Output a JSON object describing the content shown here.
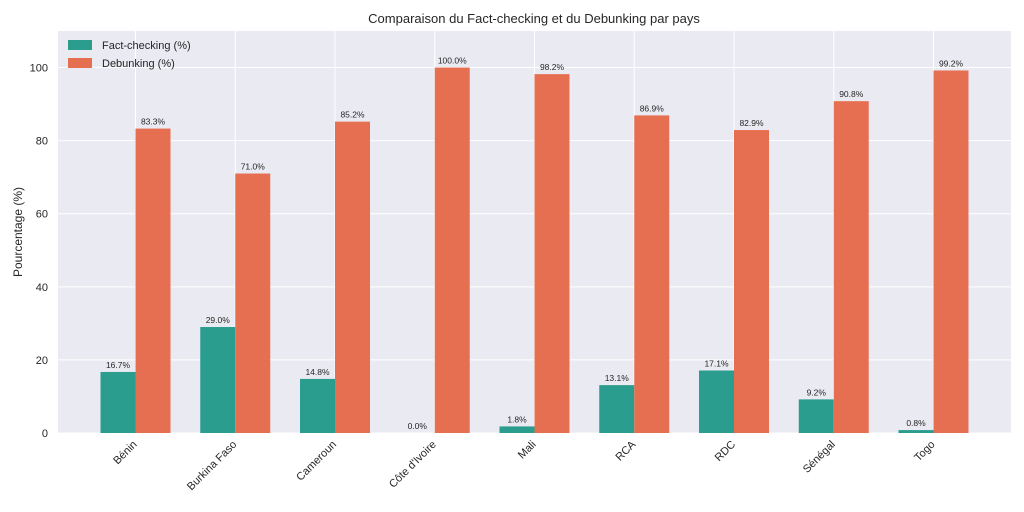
{
  "chart_data": {
    "type": "bar",
    "title": "Comparaison du Fact-checking et du Debunking par pays",
    "xlabel": "",
    "ylabel": "Pourcentage (%)",
    "ylim": [
      0,
      110
    ],
    "yticks": [
      0,
      20,
      40,
      60,
      80,
      100
    ],
    "grid": true,
    "legend_position": "top-left",
    "categories": [
      "Bénin",
      "Burkina Faso",
      "Cameroun",
      "Côte d'Ivoire",
      "Mali",
      "RCA",
      "RDC",
      "Sénégal",
      "Togo"
    ],
    "series": [
      {
        "name": "Fact-checking (%)",
        "color": "#2a9d8f",
        "values": [
          16.7,
          29.0,
          14.8,
          0.0,
          1.8,
          13.1,
          17.1,
          9.2,
          0.8
        ],
        "labels": [
          "16.7%",
          "29.0%",
          "14.8%",
          "0.0%",
          "1.8%",
          "13.1%",
          "17.1%",
          "9.2%",
          "0.8%"
        ]
      },
      {
        "name": "Debunking (%)",
        "color": "#e76f51",
        "values": [
          83.3,
          71.0,
          85.2,
          100.0,
          98.2,
          86.9,
          82.9,
          90.8,
          99.2
        ],
        "labels": [
          "83.3%",
          "71.0%",
          "85.2%",
          "100.0%",
          "98.2%",
          "86.9%",
          "82.9%",
          "90.8%",
          "99.2%"
        ]
      }
    ]
  }
}
